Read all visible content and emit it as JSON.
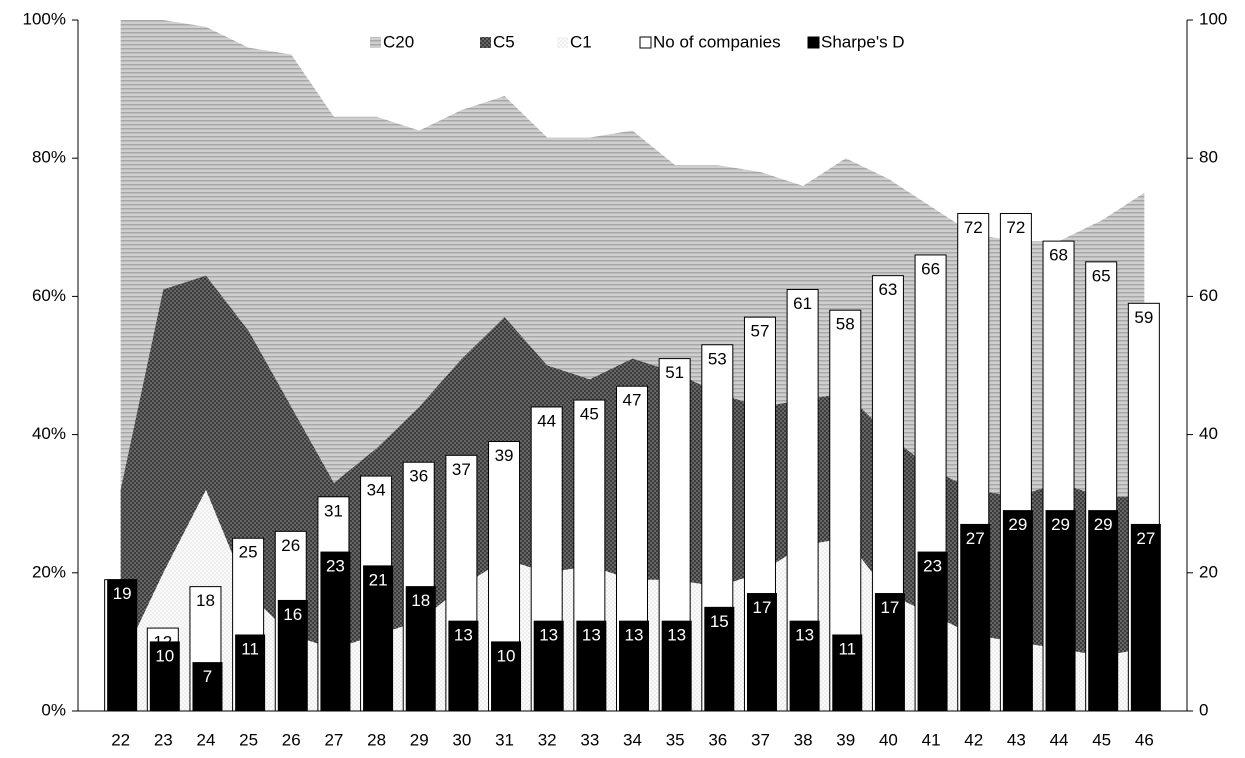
{
  "chart_data": {
    "type": "combo",
    "categories": [
      "22",
      "23",
      "24",
      "25",
      "26",
      "27",
      "28",
      "29",
      "30",
      "31",
      "32",
      "33",
      "34",
      "35",
      "36",
      "37",
      "38",
      "39",
      "40",
      "41",
      "42",
      "43",
      "44",
      "45",
      "46"
    ],
    "ylim": [
      0,
      100
    ],
    "yticks": [
      {
        "value": 0,
        "label": "0%"
      },
      {
        "value": 20,
        "label": "20%"
      },
      {
        "value": 40,
        "label": "40%"
      },
      {
        "value": 60,
        "label": "60%"
      },
      {
        "value": 80,
        "label": "80%"
      },
      {
        "value": 100,
        "label": "100%"
      }
    ],
    "y2lim": [
      0,
      100
    ],
    "y2ticks": [
      0,
      20,
      40,
      60,
      80,
      100
    ],
    "legend": "top",
    "series": [
      {
        "name": "C20",
        "type": "area",
        "color": "#a8a8a8",
        "values": [
          100,
          100,
          99,
          96,
          95,
          86,
          86,
          84,
          87,
          89,
          83,
          83,
          84,
          79,
          79,
          78,
          76,
          80,
          77,
          73,
          69,
          68,
          68,
          71,
          75
        ]
      },
      {
        "name": "C5",
        "type": "area",
        "color": "#3c3c3c",
        "values": [
          32,
          61,
          63,
          55,
          44,
          33,
          38,
          44,
          51,
          57,
          50,
          48,
          51,
          49,
          46,
          44,
          45,
          46,
          40,
          35,
          32,
          31,
          33,
          31,
          31
        ]
      },
      {
        "name": "C1",
        "type": "area",
        "color": "#dcdcdc",
        "values": [
          7,
          20,
          32,
          17,
          11,
          9,
          11,
          13,
          18,
          22,
          20,
          21,
          19,
          19,
          18,
          20,
          24,
          25,
          17,
          14,
          11,
          10,
          9,
          8,
          9
        ]
      },
      {
        "name": "No of companies",
        "type": "bar",
        "axis": "y2",
        "color": "#ffffff",
        "values": [
          19,
          12,
          18,
          25,
          26,
          31,
          34,
          36,
          37,
          39,
          44,
          45,
          47,
          51,
          53,
          57,
          61,
          58,
          63,
          66,
          72,
          72,
          68,
          65,
          59
        ]
      },
      {
        "name": "Sharpe's D",
        "type": "bar",
        "axis": "y2",
        "color": "#000000",
        "values": [
          19,
          10,
          7,
          11,
          16,
          23,
          21,
          18,
          13,
          10,
          13,
          13,
          13,
          13,
          15,
          17,
          13,
          11,
          17,
          23,
          27,
          29,
          29,
          29,
          27
        ]
      }
    ]
  }
}
